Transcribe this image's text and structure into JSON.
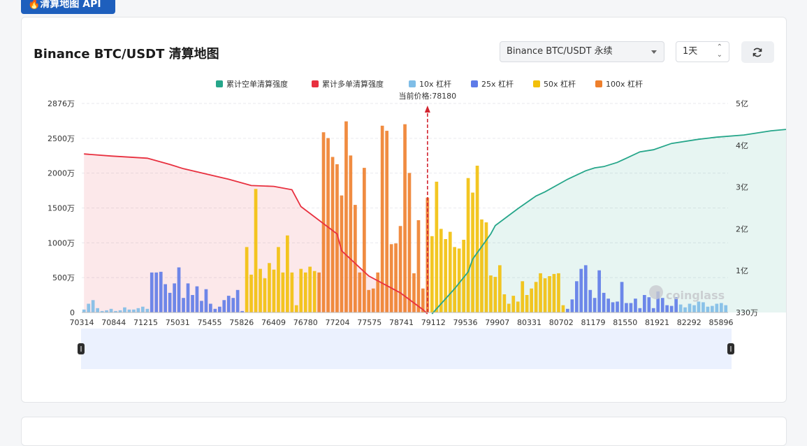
{
  "header": {
    "api_badge": "🔥清算地图 API",
    "title": "Binance BTC/USDT 清算地图"
  },
  "controls": {
    "exchange_select": "Binance BTC/USDT 永续",
    "period_select": "1天"
  },
  "watermark": "coinglass",
  "colors": {
    "short_cum": "#26a68a",
    "long_cum": "#e8303f",
    "lev10": "#7fbde7",
    "lev25": "#5e7be8",
    "lev50": "#f2c00a",
    "lev100": "#ee7f2c",
    "price_line": "#d2242f"
  },
  "chart_data": {
    "type": "bar",
    "legend": [
      "累计空单清算强度",
      "累计多单清算强度",
      "10x 杠杆",
      "25x 杠杆",
      "50x 杠杆",
      "100x 杠杆"
    ],
    "legend_position": "top-center",
    "current_price_label": "当前价格:78180",
    "current_price": 78180,
    "x_tick_labels": [
      "70314",
      "70844",
      "71215",
      "75031",
      "75455",
      "75826",
      "76409",
      "76780",
      "77204",
      "77575",
      "78741",
      "79112",
      "79536",
      "79907",
      "80331",
      "80702",
      "81179",
      "81550",
      "81921",
      "82292",
      "85896"
    ],
    "y_left_ticks": [
      "0",
      "500万",
      "1000万",
      "1500万",
      "2000万",
      "2500万",
      "2876万"
    ],
    "y_left_max": 28760000,
    "y_right_ticks": [
      "330万",
      "1亿",
      "2亿",
      "3亿",
      "4亿",
      "5亿"
    ],
    "y_right_range": [
      3300000,
      500000000
    ],
    "grid": "horizontal dashed",
    "bar_series_order": [
      "10x 杠杆",
      "25x 杠杆",
      "50x 杠杆",
      "100x 杠杆"
    ],
    "bars_wan": [
      [
        40,
        0
      ],
      [
        120,
        0
      ],
      [
        170,
        0
      ],
      [
        60,
        0
      ],
      [
        20,
        0
      ],
      [
        30,
        0
      ],
      [
        50,
        0
      ],
      [
        20,
        0
      ],
      [
        30,
        0
      ],
      [
        70,
        0
      ],
      [
        40,
        0
      ],
      [
        40,
        0
      ],
      [
        60,
        0
      ],
      [
        80,
        0
      ],
      [
        50,
        0
      ],
      [
        550,
        1
      ],
      [
        550,
        1
      ],
      [
        560,
        1
      ],
      [
        390,
        1
      ],
      [
        270,
        1
      ],
      [
        400,
        1
      ],
      [
        620,
        1
      ],
      [
        200,
        1
      ],
      [
        400,
        1
      ],
      [
        240,
        1
      ],
      [
        360,
        1
      ],
      [
        160,
        1
      ],
      [
        320,
        1
      ],
      [
        120,
        1
      ],
      [
        50,
        1
      ],
      [
        80,
        1
      ],
      [
        170,
        1
      ],
      [
        230,
        1
      ],
      [
        200,
        1
      ],
      [
        310,
        1
      ],
      [
        20,
        1
      ],
      [
        900,
        2
      ],
      [
        520,
        2
      ],
      [
        1700,
        2
      ],
      [
        600,
        2
      ],
      [
        470,
        2
      ],
      [
        680,
        2
      ],
      [
        590,
        2
      ],
      [
        900,
        2
      ],
      [
        550,
        2
      ],
      [
        1060,
        2
      ],
      [
        550,
        2
      ],
      [
        100,
        2
      ],
      [
        600,
        2
      ],
      [
        550,
        2
      ],
      [
        630,
        2
      ],
      [
        570,
        2
      ],
      [
        550,
        3
      ],
      [
        2480,
        3
      ],
      [
        2400,
        3
      ],
      [
        2140,
        3
      ],
      [
        2040,
        3
      ],
      [
        1610,
        3
      ],
      [
        2630,
        3
      ],
      [
        2160,
        3
      ],
      [
        1480,
        3
      ],
      [
        550,
        3
      ],
      [
        1990,
        3
      ],
      [
        310,
        3
      ],
      [
        330,
        3
      ],
      [
        550,
        3
      ],
      [
        2570,
        3
      ],
      [
        2500,
        3
      ],
      [
        940,
        3
      ],
      [
        950,
        3
      ],
      [
        1190,
        3
      ],
      [
        2590,
        3
      ],
      [
        1920,
        3
      ],
      [
        540,
        3
      ],
      [
        1270,
        3
      ],
      [
        330,
        3
      ],
      [
        1580,
        3
      ],
      [
        1050,
        2
      ],
      [
        1800,
        2
      ],
      [
        1150,
        2
      ],
      [
        1010,
        2
      ],
      [
        1110,
        2
      ],
      [
        900,
        2
      ],
      [
        880,
        2
      ],
      [
        1000,
        2
      ],
      [
        1850,
        2
      ],
      [
        1650,
        2
      ],
      [
        2020,
        2
      ],
      [
        1280,
        2
      ],
      [
        1240,
        2
      ],
      [
        510,
        2
      ],
      [
        490,
        2
      ],
      [
        650,
        2
      ],
      [
        250,
        2
      ],
      [
        120,
        2
      ],
      [
        230,
        2
      ],
      [
        150,
        2
      ],
      [
        430,
        2
      ],
      [
        240,
        2
      ],
      [
        330,
        2
      ],
      [
        420,
        2
      ],
      [
        540,
        2
      ],
      [
        470,
        2
      ],
      [
        500,
        2
      ],
      [
        530,
        2
      ],
      [
        540,
        2
      ],
      [
        100,
        2
      ],
      [
        50,
        1
      ],
      [
        180,
        1
      ],
      [
        430,
        1
      ],
      [
        600,
        1
      ],
      [
        650,
        1
      ],
      [
        310,
        1
      ],
      [
        200,
        1
      ],
      [
        580,
        1
      ],
      [
        270,
        1
      ],
      [
        190,
        1
      ],
      [
        140,
        1
      ],
      [
        150,
        1
      ],
      [
        420,
        1
      ],
      [
        130,
        1
      ],
      [
        130,
        1
      ],
      [
        190,
        1
      ],
      [
        60,
        1
      ],
      [
        240,
        1
      ],
      [
        210,
        1
      ],
      [
        60,
        1
      ],
      [
        290,
        1
      ],
      [
        200,
        1
      ],
      [
        100,
        1
      ],
      [
        90,
        1
      ],
      [
        210,
        1
      ],
      [
        110,
        0
      ],
      [
        70,
        0
      ],
      [
        120,
        0
      ],
      [
        100,
        0
      ],
      [
        150,
        0
      ],
      [
        140,
        0
      ],
      [
        80,
        0
      ],
      [
        90,
        0
      ],
      [
        120,
        0
      ],
      [
        130,
        0
      ],
      [
        100,
        0
      ]
    ],
    "long_cum_curve": {
      "x_index": [
        0,
        6,
        14,
        19,
        22,
        32,
        37,
        42,
        46,
        48,
        56,
        57,
        61,
        63,
        70,
        75,
        76
      ],
      "value_yi": [
        3.8,
        3.75,
        3.7,
        3.55,
        3.45,
        3.2,
        3.05,
        3.03,
        2.95,
        2.55,
        1.9,
        1.5,
        1.1,
        0.9,
        0.5,
        0.1,
        0.0
      ]
    },
    "short_cum_curve": {
      "x_index": [
        77,
        82,
        85,
        86,
        88,
        90,
        91,
        96,
        100,
        102,
        107,
        111,
        113,
        115,
        118,
        120,
        123,
        126,
        130,
        136,
        140,
        146,
        152,
        162
      ],
      "value_yi": [
        0.0,
        0.6,
        1.0,
        1.3,
        1.6,
        1.9,
        2.1,
        2.5,
        2.8,
        2.9,
        3.2,
        3.4,
        3.47,
        3.5,
        3.6,
        3.7,
        3.85,
        3.9,
        4.05,
        4.15,
        4.2,
        4.25,
        4.35,
        4.45
      ]
    }
  }
}
